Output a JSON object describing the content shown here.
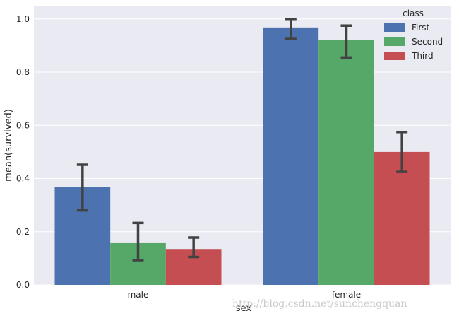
{
  "chart_data": {
    "type": "bar",
    "categories": [
      "male",
      "female"
    ],
    "series": [
      {
        "name": "First",
        "color": "#4c72b0",
        "values": [
          0.369,
          0.968
        ],
        "ci_low": [
          0.28,
          0.925
        ],
        "ci_high": [
          0.452,
          1.0
        ]
      },
      {
        "name": "Second",
        "color": "#55a868",
        "values": [
          0.157,
          0.921
        ],
        "ci_low": [
          0.093,
          0.855
        ],
        "ci_high": [
          0.233,
          0.975
        ]
      },
      {
        "name": "Third",
        "color": "#c44e52",
        "values": [
          0.135,
          0.5
        ],
        "ci_low": [
          0.105,
          0.425
        ],
        "ci_high": [
          0.178,
          0.575
        ]
      }
    ],
    "xlabel": "sex",
    "ylabel": "mean(survived)",
    "ylim": [
      0.0,
      1.05
    ],
    "yticks": [
      "0.0",
      "0.2",
      "0.4",
      "0.6",
      "0.8",
      "1.0"
    ],
    "grid": true,
    "legend": {
      "title": "class",
      "placement": "top-right"
    },
    "style": {
      "background": "#eaeaf2",
      "grid_color": "#ffffff",
      "errorbar_color": "#424242"
    }
  },
  "watermark": "http://blog.csdn.net/sunchengquan"
}
